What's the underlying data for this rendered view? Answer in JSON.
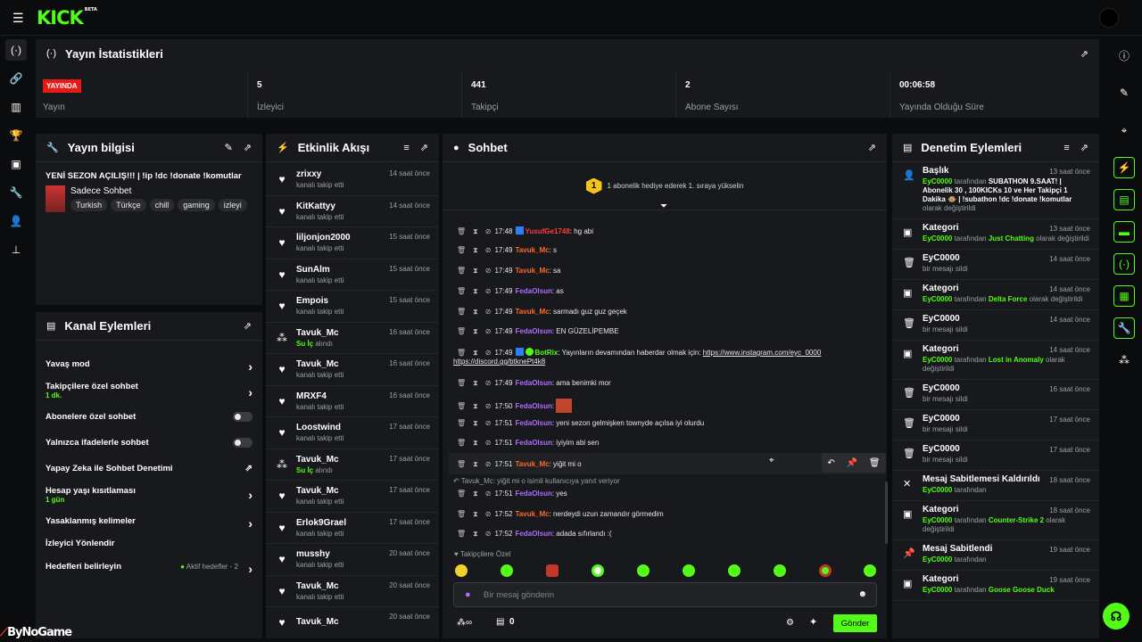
{
  "app": {
    "logo": "KICK",
    "logo_badge": "BETA"
  },
  "watermark": "ByNoGame",
  "stats": {
    "title": "Yayın İstatistikleri",
    "items": [
      {
        "value": "YAYINDA",
        "label": "Yayın"
      },
      {
        "value": "5",
        "label": "İzleyici"
      },
      {
        "value": "441",
        "label": "Takipçi"
      },
      {
        "value": "2",
        "label": "Abone Sayısı"
      },
      {
        "value": "00:06:58",
        "label": "Yayında Olduğu Süre"
      }
    ]
  },
  "stream_info": {
    "title": "Yayın bilgisi",
    "stream_title": "YENİ SEZON AÇILIŞ!!! | !ip !dc !donate !komutlar",
    "category": "Sadece Sohbet",
    "tags": [
      "Turkish",
      "Türkçe",
      "chill",
      "gaming",
      "izleyi"
    ]
  },
  "channel_actions": {
    "title": "Kanal Eylemleri",
    "items": [
      {
        "label": "Yavaş mod",
        "sub": "",
        "control": "chevron"
      },
      {
        "label": "Takipçilere özel sohbet",
        "sub": "1 dk.",
        "control": "chevron"
      },
      {
        "label": "Abonelere özel sohbet",
        "sub": "",
        "control": "toggle"
      },
      {
        "label": "Yalnızca ifadelerle sohbet",
        "sub": "",
        "control": "toggle"
      },
      {
        "label": "Yapay Zeka ile Sohbet Denetimi",
        "sub": "",
        "control": "external"
      },
      {
        "label": "Hesap yaşı kısıtlaması",
        "sub": "1 gün",
        "control": "chevron"
      },
      {
        "label": "Yasaklanmış kelimeler",
        "sub": "",
        "control": "chevron"
      },
      {
        "label": "İzleyici Yönlendir",
        "sub": "",
        "control": "none"
      },
      {
        "label": "Hedefleri belirleyin",
        "sub": "",
        "control": "chevron",
        "badge": "Aktif hedefler - 2"
      }
    ]
  },
  "activity": {
    "title": "Etkinlik Akışı",
    "items": [
      {
        "name": "zrixxy",
        "sub": "kanalı takip etti",
        "time": "14 saat önce",
        "icon": "heart"
      },
      {
        "name": "KitKattyy",
        "sub": "kanalı takip etti",
        "time": "14 saat önce",
        "icon": "heart"
      },
      {
        "name": "liljonjon2000",
        "sub": "kanalı takip etti",
        "time": "15 saat önce",
        "icon": "heart"
      },
      {
        "name": "SunAlm",
        "sub": "kanalı takip etti",
        "time": "15 saat önce",
        "icon": "heart"
      },
      {
        "name": "Empois",
        "sub": "kanalı takip etti",
        "time": "15 saat önce",
        "icon": "heart"
      },
      {
        "name": "Tavuk_Mc",
        "sub": "Su İç",
        "sub2": " alındı",
        "time": "16 saat önce",
        "icon": "points"
      },
      {
        "name": "Tavuk_Mc",
        "sub": "kanalı takip etti",
        "time": "16 saat önce",
        "icon": "heart"
      },
      {
        "name": "MRXF4",
        "sub": "kanalı takip etti",
        "time": "16 saat önce",
        "icon": "heart"
      },
      {
        "name": "Loostwind",
        "sub": "kanalı takip etti",
        "time": "17 saat önce",
        "icon": "heart"
      },
      {
        "name": "Tavuk_Mc",
        "sub": "Su İç",
        "sub2": " alındı",
        "time": "17 saat önce",
        "icon": "points"
      },
      {
        "name": "Tavuk_Mc",
        "sub": "kanalı takip etti",
        "time": "17 saat önce",
        "icon": "heart"
      },
      {
        "name": "Erlok9Grael",
        "sub": "kanalı takip etti",
        "time": "17 saat önce",
        "icon": "heart"
      },
      {
        "name": "musshy",
        "sub": "kanalı takip etti",
        "time": "20 saat önce",
        "icon": "heart"
      },
      {
        "name": "Tavuk_Mc",
        "sub": "kanalı takip etti",
        "time": "20 saat önce",
        "icon": "heart"
      },
      {
        "name": "Tavuk_Mc",
        "sub": "",
        "time": "20 saat önce",
        "icon": "heart"
      }
    ]
  },
  "chat": {
    "title": "Sohbet",
    "gift_prompt": "1 abonelik hediye ederek 1. sıraya yükselin",
    "gift_rank": "1",
    "messages": [
      {
        "time": "17:48",
        "user": "YusufGe1748",
        "ucls": "u-r",
        "text": ": hg abi"
      },
      {
        "time": "17:49",
        "user": "Tavuk_Mc",
        "ucls": "u-o",
        "text": ": s"
      },
      {
        "time": "17:49",
        "user": "Tavuk_Mc",
        "ucls": "u-o",
        "text": ": sa"
      },
      {
        "time": "17:49",
        "user": "FedaOlsun",
        "ucls": "u-p",
        "text": ": as"
      },
      {
        "time": "17:49",
        "user": "Tavuk_Mc",
        "ucls": "u-o",
        "text": ": sarmadı guz guz geçek"
      },
      {
        "time": "17:49",
        "user": "FedaOlsun",
        "ucls": "u-p",
        "text": ": EN GÜZELİPEMBE"
      },
      {
        "time": "17:49",
        "user": "BotRix",
        "ucls": "u-g",
        "text": ": Yayınların devamından haberdar olmak için: ",
        "link1": "https://www.instagram.com/eyc_0000",
        "link2": "https://discord.gg/btknePt4k8"
      },
      {
        "time": "17:49",
        "user": "FedaOlsun",
        "ucls": "u-p",
        "text": ": ama benimki mor"
      },
      {
        "time": "17:50",
        "user": "FedaOlsun",
        "ucls": "u-p",
        "text": ":"
      },
      {
        "time": "17:51",
        "user": "FedaOlsun",
        "ucls": "u-p",
        "text": ": yeni sezon gelmişken townyde açılsa iyi olurdu"
      },
      {
        "time": "17:51",
        "user": "FedaOlsun",
        "ucls": "u-p",
        "text": ": iyiyim abi sen"
      },
      {
        "time": "17:51",
        "user": "Tavuk_Mc",
        "ucls": "u-o",
        "text": ": yiğit mi o"
      },
      {
        "time": "17:51",
        "user": "FedaOlsun",
        "ucls": "u-p",
        "text": ": yes"
      },
      {
        "time": "17:52",
        "user": "Tavuk_Mc",
        "ucls": "u-o",
        "text": ": nerdeydi uzun zamandır görmedim"
      },
      {
        "time": "17:52",
        "user": "FedaOlsun",
        "ucls": "u-p",
        "text": ": adada sıfırlandı :("
      }
    ],
    "reply_note": "Tavuk_Mc: yiğit mi o isimli kullanıcıya yanıt veriyor",
    "followers_only": "Takipçilere Özel",
    "input_placeholder": "Bir mesaj gönderin",
    "points": "0",
    "send_label": "Gönder"
  },
  "moderation": {
    "title": "Denetim Eylemleri",
    "items": [
      {
        "title": "Başlık",
        "time": "13 saat önce",
        "icon": "user-edit",
        "by": "EyC0000",
        "mid": " tarafından ",
        "val": "SUBATHON 9.SAAT! | Abonelik 30 , 100KICKs 10 ve Her Takipçi 1 Dakika 🐵 | !subathon !dc !donate !komutlar",
        "end": " olarak değiştirildi"
      },
      {
        "title": "Kategori",
        "time": "13 saat önce",
        "icon": "tv",
        "by": "EyC0000",
        "mid": " tarafından ",
        "val": "Just Chatting",
        "end": " olarak değiştirildi"
      },
      {
        "title": "EyC0000",
        "time": "14 saat önce",
        "icon": "trash",
        "by": "",
        "mid": "bir mesajı sildi",
        "val": "",
        "end": ""
      },
      {
        "title": "Kategori",
        "time": "14 saat önce",
        "icon": "tv",
        "by": "EyC0000",
        "mid": " tarafından ",
        "val": "Delta Force",
        "end": " olarak değiştirildi"
      },
      {
        "title": "EyC0000",
        "time": "14 saat önce",
        "icon": "trash",
        "by": "",
        "mid": "bir mesajı sildi",
        "val": "",
        "end": ""
      },
      {
        "title": "Kategori",
        "time": "14 saat önce",
        "icon": "tv",
        "by": "EyC0000",
        "mid": " tarafından ",
        "val": "Lost in Anomaly",
        "end": " olarak değiştirildi"
      },
      {
        "title": "EyC0000",
        "time": "16 saat önce",
        "icon": "trash",
        "by": "",
        "mid": "bir mesajı sildi",
        "val": "",
        "end": ""
      },
      {
        "title": "EyC0000",
        "time": "17 saat önce",
        "icon": "trash",
        "by": "",
        "mid": "bir mesajı sildi",
        "val": "",
        "end": ""
      },
      {
        "title": "EyC0000",
        "time": "17 saat önce",
        "icon": "trash",
        "by": "",
        "mid": "bir mesajı sildi",
        "val": "",
        "end": ""
      },
      {
        "title": "Mesaj Sabitlemesi Kaldırıldı",
        "time": "18 saat önce",
        "icon": "unpin",
        "by": "EyC0000",
        "mid": " tarafından",
        "val": "",
        "end": ""
      },
      {
        "title": "Kategori",
        "time": "18 saat önce",
        "icon": "tv",
        "by": "EyC0000",
        "mid": " tarafından ",
        "val": "Counter-Strike 2",
        "end": " olarak değiştirildi"
      },
      {
        "title": "Mesaj Sabitlendi",
        "time": "19 saat önce",
        "icon": "pin",
        "by": "EyC0000",
        "mid": " tarafından",
        "val": "",
        "end": ""
      },
      {
        "title": "Kategori",
        "time": "19 saat önce",
        "icon": "tv",
        "by": "EyC0000",
        "mid": " tarafından ",
        "val": "Goose Goose Duck",
        "end": ""
      }
    ]
  },
  "colors": {
    "accent": "#53fc18",
    "live": "#e91916",
    "panel": "#18191c",
    "bg": "#0b0c0e"
  }
}
